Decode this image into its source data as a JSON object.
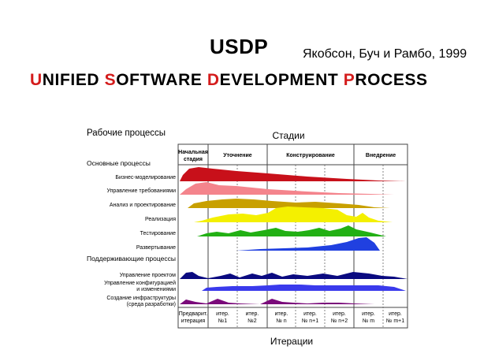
{
  "header": {
    "title": "USDP",
    "authors": "Якобсон, Буч и Рамбо, 1999",
    "subtitle_words": [
      {
        "first": "U",
        "rest": "NIFIED "
      },
      {
        "first": "S",
        "rest": "OFTWARE "
      },
      {
        "first": "D",
        "rest": "EVELOPMENT "
      },
      {
        "first": "P",
        "rest": "ROCESS"
      }
    ],
    "accent_color": "#d41c1c"
  },
  "diagram": {
    "workflows_label": "Рабочие процессы",
    "stages_label": "Стадии",
    "core_label": "Основные процессы",
    "supporting_label": "Поддерживающие процессы",
    "iterations_label": "Итерации",
    "phases": [
      {
        "lines": [
          "Начальная",
          "стадия"
        ]
      },
      {
        "lines": [
          "Уточнение"
        ]
      },
      {
        "lines": [
          "Конструирование"
        ]
      },
      {
        "lines": [
          "Внедрение"
        ]
      }
    ],
    "core_workflows": [
      {
        "label": "Бизнес-моделирование",
        "color": "#c8101a"
      },
      {
        "label": "Управление требованиями",
        "color": "#f4848c"
      },
      {
        "label": "Анализ и проектирование",
        "color": "#c8a000"
      },
      {
        "label": "Реализация",
        "color": "#f4f000"
      },
      {
        "label": "Тестирование",
        "color": "#22b014"
      },
      {
        "label": "Развертывание",
        "color": "#2040e0"
      }
    ],
    "supporting_workflows": [
      {
        "lines": [
          "Управление проектом"
        ],
        "color": "#0a0a80"
      },
      {
        "lines": [
          "Управление конфигурацией",
          "и изменениями"
        ],
        "color": "#3a3aec"
      },
      {
        "lines": [
          "Создание инфраструктуры",
          "(среда разработки)"
        ],
        "color": "#7a0a7a"
      }
    ],
    "iterations": [
      {
        "lines": [
          "Предварит.",
          "итерация"
        ]
      },
      {
        "lines": [
          "итер.",
          "№1"
        ]
      },
      {
        "lines": [
          "итер.",
          "№2"
        ]
      },
      {
        "lines": [
          "итер.",
          "№ n"
        ]
      },
      {
        "lines": [
          "итер.",
          "№ n+1"
        ]
      },
      {
        "lines": [
          "итер.",
          "№ n+2"
        ]
      },
      {
        "lines": [
          "итер.",
          "№ m"
        ]
      },
      {
        "lines": [
          "итер.",
          "№ m+1"
        ]
      }
    ]
  }
}
